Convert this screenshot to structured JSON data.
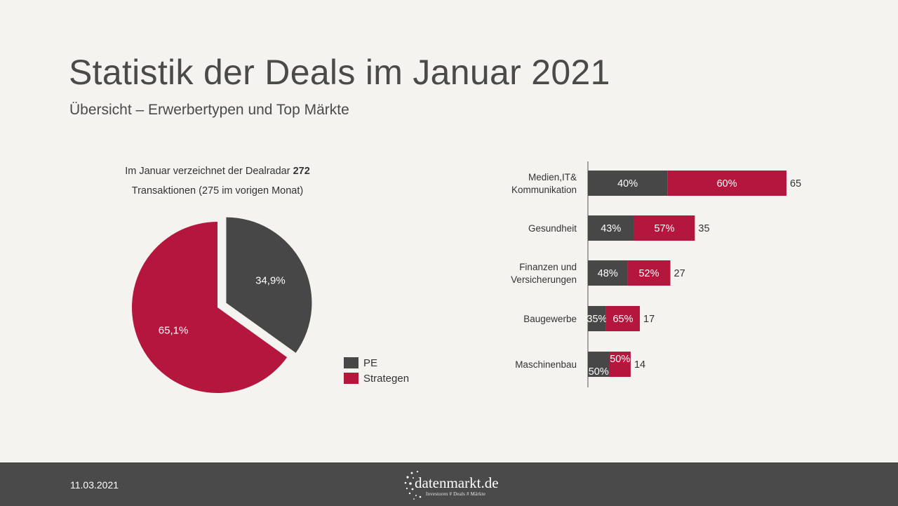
{
  "title": "Statistik der Deals im Januar 2021",
  "subtitle": "Übersicht – Erwerbertypen und Top Märkte",
  "intro": {
    "line1_text": "Im Januar verzeichnet  der Dealradar ",
    "line1_bold": "272",
    "line2": "Transaktionen  (275 im vorigen Monat)"
  },
  "colors": {
    "pe": "#474747",
    "strategen": "#b5163d",
    "background": "#f5f3ef",
    "footer": "#4a4a4a"
  },
  "chart_data": [
    {
      "type": "pie",
      "slices": [
        {
          "name": "PE",
          "value": 34.9,
          "label": "34,9%",
          "color": "#474747",
          "exploded": true
        },
        {
          "name": "Strategen",
          "value": 65.1,
          "label": "65,1%",
          "color": "#b5163d",
          "exploded": false
        }
      ],
      "legend_position": "right-bottom"
    },
    {
      "type": "bar",
      "orientation": "horizontal",
      "stacked": true,
      "categories": [
        "Medien,IT& Kommunikation",
        "Gesundheit",
        "Finanzen und Versicherungen",
        "Baugewerbe",
        "Maschinenbau"
      ],
      "category_lines": [
        [
          "Medien,IT&",
          "Kommunikation"
        ],
        [
          "Gesundheit"
        ],
        [
          "Finanzen und",
          "Versicherungen"
        ],
        [
          "Baugewerbe"
        ],
        [
          "Maschinenbau"
        ]
      ],
      "totals": [
        65,
        35,
        27,
        17,
        14
      ],
      "total_labels": [
        "65",
        "35",
        "27",
        "17",
        "14"
      ],
      "series": [
        {
          "name": "PE",
          "color": "#474747",
          "shares": [
            0.4,
            0.43,
            0.48,
            0.35,
            0.5
          ],
          "labels": [
            "40%",
            "43%",
            "48%",
            "35%",
            "50%"
          ]
        },
        {
          "name": "Strategen",
          "color": "#b5163d",
          "shares": [
            0.6,
            0.57,
            0.52,
            0.65,
            0.5
          ],
          "labels": [
            "60%",
            "57%",
            "52%",
            "65%",
            "50%"
          ]
        }
      ],
      "xlim": [
        0,
        65
      ]
    }
  ],
  "legend": {
    "pe_label": "PE",
    "strategen_label": "Strategen"
  },
  "footer": {
    "date": "11.03.2021",
    "logo_name": "datenmarkt.de",
    "logo_tagline": "Investoren # Deals # Märkte"
  }
}
